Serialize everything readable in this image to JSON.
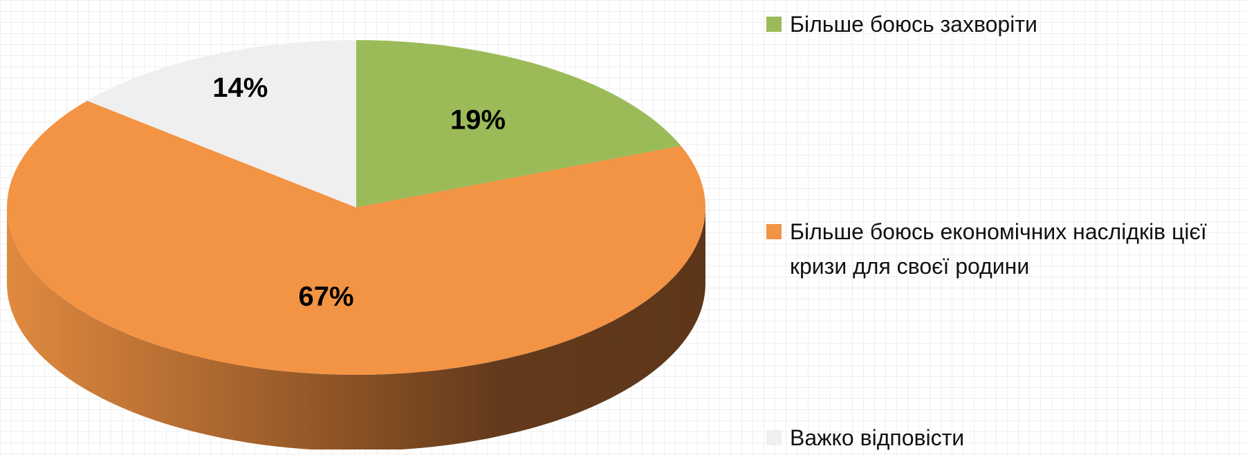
{
  "chart_data": {
    "type": "pie3d",
    "categories": [
      "Більше боюсь захворіти",
      "Більше боюсь економічних наслідків цієї кризи для своєї родини",
      "Важко відповісти"
    ],
    "values": [
      19,
      67,
      14
    ],
    "value_labels": [
      "19%",
      "67%",
      "14%"
    ],
    "colors": [
      "#9bbb59",
      "#f39344",
      "#efefef"
    ],
    "legend": "right"
  }
}
